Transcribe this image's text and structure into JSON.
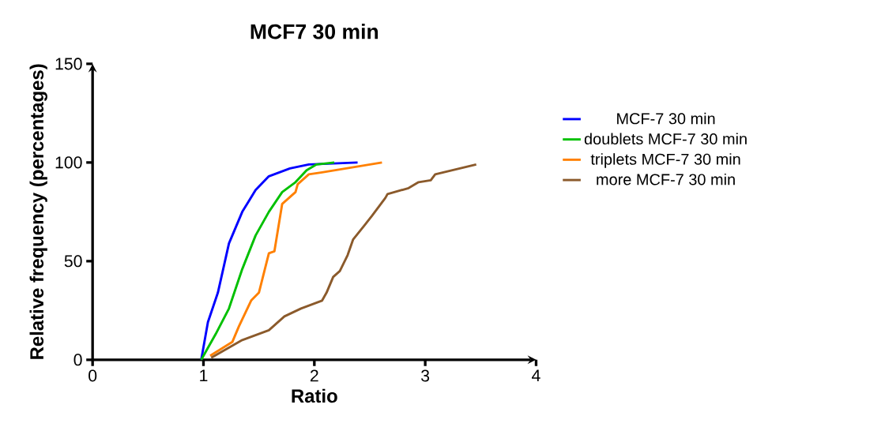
{
  "chart_data": {
    "type": "line",
    "title": "MCF7 30 min",
    "xlabel": "Ratio",
    "ylabel": "Relative frequency (percentages)",
    "xlim": [
      0,
      4
    ],
    "xticks": [
      0,
      1,
      2,
      3,
      4
    ],
    "ylim": [
      0,
      150
    ],
    "yticks": [
      0,
      50,
      100,
      150
    ],
    "legend": "right",
    "grid": false,
    "marker": "none",
    "line_style": "solid",
    "series": [
      {
        "name": "MCF-7 30 min",
        "color": "#0000ff",
        "x": [
          0.98,
          1.04,
          1.13,
          1.23,
          1.35,
          1.47,
          1.59,
          1.78,
          1.95,
          2.39
        ],
        "values": [
          0,
          19,
          34,
          59,
          75,
          86,
          93,
          97,
          99,
          100
        ]
      },
      {
        "name": "doublets MCF-7 30 min",
        "color": "#00c000",
        "x": [
          0.98,
          1.11,
          1.23,
          1.35,
          1.47,
          1.59,
          1.71,
          1.83,
          1.93,
          2.02,
          2.18
        ],
        "values": [
          0,
          13,
          26,
          46,
          63,
          75,
          85,
          90,
          96,
          99,
          100
        ]
      },
      {
        "name": "triplets MCF-7 30 min",
        "color": "#ff8000",
        "x": [
          1.06,
          1.26,
          1.32,
          1.43,
          1.5,
          1.59,
          1.64,
          1.71,
          1.77,
          1.83,
          1.85,
          1.95,
          2.07,
          2.61
        ],
        "values": [
          2,
          9,
          17,
          30,
          34,
          54,
          55,
          79,
          82,
          85,
          89,
          94,
          95,
          100
        ]
      },
      {
        "name": "more MCF-7 30 min",
        "color": "#8b5a2b",
        "x": [
          1.07,
          1.35,
          1.59,
          1.73,
          1.88,
          2.07,
          2.11,
          2.17,
          2.23,
          2.3,
          2.35,
          2.45,
          2.52,
          2.64,
          2.66,
          2.85,
          2.94,
          3.05,
          3.09,
          3.46
        ],
        "values": [
          1,
          10,
          15,
          22,
          26,
          30,
          34,
          42,
          45,
          53,
          61,
          68,
          73,
          82,
          84,
          87,
          90,
          91,
          94,
          99
        ]
      }
    ]
  }
}
